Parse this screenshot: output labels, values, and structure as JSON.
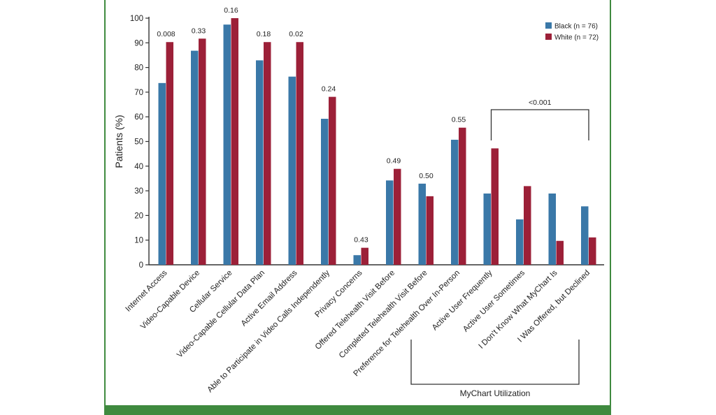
{
  "chart_data": {
    "type": "bar",
    "ylabel": "Patients (%)",
    "ylim": [
      0,
      100
    ],
    "yticks": [
      0,
      10,
      20,
      30,
      40,
      50,
      60,
      70,
      80,
      90,
      100
    ],
    "categories": [
      "Internet Access",
      "Video-Capable Device",
      "Cellular Service",
      "Video-Capable Cellular Data Plan",
      "Active Email Address",
      "Able to Participate in Video Calls Independently",
      "Privacy Concerns",
      "Offered Telehealth Visit Before",
      "Completed Telehealth Visit Before",
      "Preference for Telehealth Over In-Person",
      "Active User Frequently",
      "Active User Sometimes",
      "I Don't Know What MyChart Is",
      "I Was Offered, but Declined"
    ],
    "series": [
      {
        "name": "Black (n = 76)",
        "color": "#3a78a8",
        "values": [
          73.7,
          86.8,
          97.4,
          82.9,
          76.3,
          59.2,
          3.9,
          34.2,
          32.9,
          50.7,
          28.9,
          18.4,
          28.9,
          23.7
        ]
      },
      {
        "name": "White (n = 72)",
        "color": "#9c2038",
        "values": [
          90.3,
          91.7,
          100,
          90.3,
          90.3,
          68.1,
          6.9,
          38.9,
          27.8,
          55.6,
          47.2,
          31.9,
          9.7,
          11.1
        ]
      }
    ],
    "p_values": [
      "0.008",
      "0.33",
      "0.16",
      "0.18",
      "0.02",
      "0.24",
      "0.43",
      "0.49",
      "0.50",
      "0.55",
      null,
      null,
      null,
      null
    ],
    "group_p_value": "<0.001",
    "group_label": "MyChart Utilization",
    "legend_position": "top-right"
  }
}
